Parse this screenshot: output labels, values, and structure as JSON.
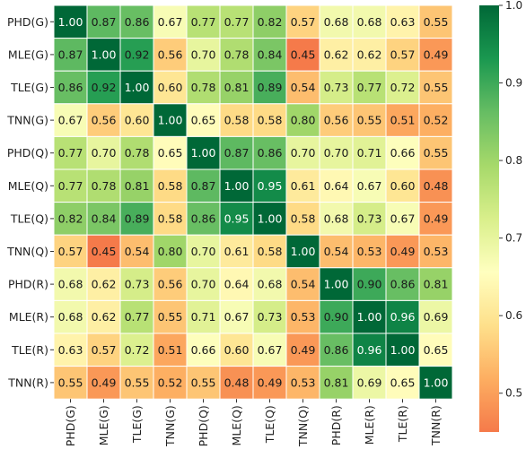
{
  "chart_data": {
    "type": "heatmap",
    "title": "",
    "xlabel": "",
    "ylabel": "",
    "labels": [
      "PHD(G)",
      "MLE(G)",
      "TLE(G)",
      "TNN(G)",
      "PHD(Q)",
      "MLE(Q)",
      "TLE(Q)",
      "TNN(Q)",
      "PHD(R)",
      "MLE(R)",
      "TLE(R)",
      "TNN(R)"
    ],
    "value_labels": [
      [
        "1.00",
        "0.87",
        "0.86",
        "0.67",
        "0.77",
        "0.77",
        "0.82",
        "0.57",
        "0.68",
        "0.68",
        "0.63",
        "0.55"
      ],
      [
        "0.87",
        "1.00",
        "0.92",
        "0.56",
        "0.70",
        "0.78",
        "0.84",
        "0.45",
        "0.62",
        "0.62",
        "0.57",
        "0.49"
      ],
      [
        "0.86",
        "0.92",
        "1.00",
        "0.60",
        "0.78",
        "0.81",
        "0.89",
        "0.54",
        "0.73",
        "0.77",
        "0.72",
        "0.55"
      ],
      [
        "0.67",
        "0.56",
        "0.60",
        "1.00",
        "0.65",
        "0.58",
        "0.58",
        "0.80",
        "0.56",
        "0.55",
        "0.51",
        "0.52"
      ],
      [
        "0.77",
        "0.70",
        "0.78",
        "0.65",
        "1.00",
        "0.87",
        "0.86",
        "0.70",
        "0.70",
        "0.71",
        "0.66",
        "0.55"
      ],
      [
        "0.77",
        "0.78",
        "0.81",
        "0.58",
        "0.87",
        "1.00",
        "0.95",
        "0.61",
        "0.64",
        "0.67",
        "0.60",
        "0.48"
      ],
      [
        "0.82",
        "0.84",
        "0.89",
        "0.58",
        "0.86",
        "0.95",
        "1.00",
        "0.58",
        "0.68",
        "0.73",
        "0.67",
        "0.49"
      ],
      [
        "0.57",
        "0.45",
        "0.54",
        "0.80",
        "0.70",
        "0.61",
        "0.58",
        "1.00",
        "0.54",
        "0.53",
        "0.49",
        "0.53"
      ],
      [
        "0.68",
        "0.62",
        "0.73",
        "0.56",
        "0.70",
        "0.64",
        "0.68",
        "0.54",
        "1.00",
        "0.90",
        "0.86",
        "0.81"
      ],
      [
        "0.68",
        "0.62",
        "0.77",
        "0.55",
        "0.71",
        "0.67",
        "0.73",
        "0.53",
        "0.90",
        "1.00",
        "0.96",
        "0.69"
      ],
      [
        "0.63",
        "0.57",
        "0.72",
        "0.51",
        "0.66",
        "0.60",
        "0.67",
        "0.49",
        "0.86",
        "0.96",
        "1.00",
        "0.65"
      ],
      [
        "0.55",
        "0.49",
        "0.55",
        "0.52",
        "0.55",
        "0.48",
        "0.49",
        "0.53",
        "0.81",
        "0.69",
        "0.65",
        "1.00"
      ]
    ],
    "colorbar": {
      "min": 0.45,
      "max": 1.0,
      "ticks": [
        "0.5",
        "0.6",
        "0.7",
        "0.8",
        "0.9",
        "1.0"
      ],
      "colormap": "RdYlGn",
      "colors": [
        "#f57a4a",
        "#fdae61",
        "#fee08b",
        "#ffffbf",
        "#d9ef8b",
        "#a6d96a",
        "#66bd63",
        "#1a9850",
        "#006837"
      ]
    },
    "grid_lines": true,
    "cell_border_color": "#ffffff"
  }
}
